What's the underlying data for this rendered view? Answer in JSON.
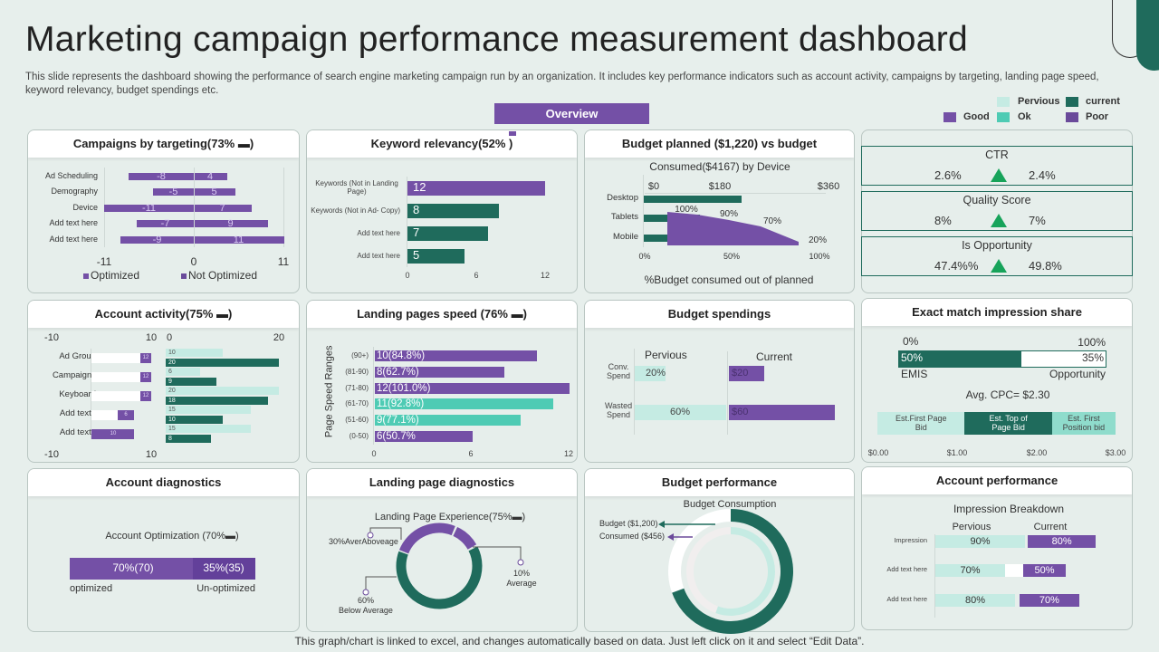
{
  "header": {
    "title": "Marketing campaign performance measurement dashboard",
    "description": "This slide represents the dashboard showing the performance of search engine marketing campaign run by an organization. It includes key performance indicators such as account activity,  campaigns by targeting, landing page speed, keyword relevancy,  budget spendings etc.",
    "overview_label": "Overview"
  },
  "legend": {
    "previous": "Pervious",
    "current": "current",
    "good": "Good",
    "ok": "Ok",
    "poor": "Poor"
  },
  "panels": {
    "campaigns": "Campaigns by targeting(73% ▬)",
    "keyword": "Keyword relevancy(52%   )",
    "budget_planned": "Budget planned ($1,220)  vs budget",
    "account_activity": "Account activity(75% ▬)",
    "landing_speed": "Landing pages speed (76% ▬)",
    "budget_spendings": "Budget spendings",
    "exact_match": "Exact match  impression share",
    "account_diagnostics": "Account diagnostics",
    "landing_diagnostics": "Landing page diagnostics",
    "budget_performance": "Budget performance",
    "account_performance": "Account performance"
  },
  "kpis": [
    {
      "label": "CTR",
      "previous": "2.6%",
      "current": "2.4%",
      "trend": "up"
    },
    {
      "label": "Quality Score",
      "previous": "8%",
      "current": "7%",
      "trend": "up"
    },
    {
      "label": "Is Opportunity",
      "previous": "47.4%%",
      "current": "49.8%",
      "trend": "up"
    }
  ],
  "footer": "This graph/chart is linked to excel,  and changes automatically based on data. Just left click on it and select “Edit Data”.",
  "colors": {
    "purple": "#7450a6",
    "dark_green": "#1f6b5c",
    "light_mint": "#c5ebe3",
    "teal": "#4ecbb4",
    "up_arrow": "#17a35a",
    "background": "#e7efec"
  },
  "chart_data": [
    {
      "type": "bar",
      "id": "campaigns",
      "categories": [
        "Ad Scheduling",
        "Demography",
        "Device",
        "Add text here",
        "Add text here"
      ],
      "series": [
        {
          "name": "Optimized",
          "values": [
            -8,
            -5,
            -11,
            -7,
            -9
          ]
        },
        {
          "name": "Not Optimized",
          "values": [
            4,
            5,
            7,
            9,
            11
          ]
        }
      ],
      "xlim": [
        -11,
        11
      ],
      "ticks": [
        "-11",
        "0",
        "11"
      ],
      "legend": "bottom"
    },
    {
      "type": "bar",
      "id": "keyword",
      "categories": [
        "Keywords (Not in Landing Page)",
        "Keywords (Not in Ad- Copy)",
        "Add text here",
        "Add text here"
      ],
      "values": [
        12,
        8,
        7,
        5
      ],
      "xlim": [
        0,
        12
      ],
      "ticks": [
        "0",
        "6",
        "12"
      ]
    },
    {
      "type": "area",
      "id": "budget_planned",
      "subtitle": "Consumed($4167) by Device",
      "categories": [
        "Desktop",
        "Tablets",
        "Mobile"
      ],
      "device_spend": [
        190,
        110,
        45
      ],
      "top_ticks": [
        "$0",
        "$180",
        "$360"
      ],
      "consumed_pct": [
        100,
        90,
        70,
        20
      ],
      "consumed_labels": [
        "100%",
        "90%",
        "70%",
        "20%"
      ],
      "bottom_ticks": [
        "0%",
        "50%",
        "100%"
      ],
      "xlabel": "%Budget consumed out of planned"
    },
    {
      "type": "bar",
      "id": "account_activity",
      "categories": [
        "Ad Group",
        "Campaigns",
        "Keyboard",
        "Add text..",
        "Add text.."
      ],
      "left_values": [
        12,
        12,
        12,
        6,
        10
      ],
      "left_ticks": [
        "-10",
        "10"
      ],
      "series": [
        {
          "values": [
            10,
            6,
            20,
            15,
            15
          ]
        },
        {
          "values": [
            20,
            9,
            18,
            10,
            8
          ]
        }
      ],
      "right_ticks": [
        "0",
        "20"
      ]
    },
    {
      "type": "bar",
      "id": "landing_speed",
      "ylabel": "Page Speed Ranges",
      "categories": [
        "(90+)",
        "(81-90)",
        "(71-80)",
        "(61-70)",
        "(51-60)",
        "(0-50)"
      ],
      "values": [
        10,
        8,
        12,
        11,
        9,
        6
      ],
      "labels": [
        "10(84.8%)",
        "8(62.7%)",
        "12(101.0%)",
        "11(92.8%)",
        "9(77.1%)",
        "6(50.7%"
      ],
      "ratings": [
        "purple",
        "purple",
        "purple",
        "teal",
        "teal",
        "purple"
      ],
      "xlim": [
        0,
        12
      ],
      "ticks": [
        "0",
        "6",
        "12"
      ]
    },
    {
      "type": "bar",
      "id": "budget_spendings",
      "categories": [
        "Conv. Spend",
        "Wasted Spend"
      ],
      "previous_label": "Pervious",
      "current_label": "Current",
      "previous": [
        20,
        60
      ],
      "previous_text": [
        "20%",
        "60%"
      ],
      "current": [
        20,
        60
      ],
      "current_text": [
        "$20",
        "$60"
      ]
    },
    {
      "type": "bar",
      "id": "exact_match",
      "min_label": "0%",
      "max_label": "100%",
      "emis": 50,
      "emis_label": "50%",
      "opportunity_label": "35%",
      "left_caption": "EMIS",
      "right_caption": "Opportunity",
      "avg_cpc": "Avg.  CPC= $2.30",
      "bids": [
        {
          "label": "Est.First Page Bid",
          "from": 0,
          "to": 1.1
        },
        {
          "label": "Est. Top of Page Bid",
          "from": 1.1,
          "to": 2.2
        },
        {
          "label": "Est. First Position bid",
          "from": 2.2,
          "to": 3.0
        }
      ],
      "ticks": [
        "$0.00",
        "$1.00",
        "$2.00",
        "$3.00"
      ]
    },
    {
      "type": "bar",
      "id": "account_diagnostics",
      "title": "Account Optimization (70%▬)",
      "optimized": 70,
      "optimized_label": "70%(70)",
      "unoptimized": 35,
      "unoptimized_label": "35%(35)",
      "left_caption": "optimized",
      "right_caption": "Un-optimized"
    },
    {
      "type": "pie",
      "id": "landing_diagnostics",
      "title": "Landing Page Experience(75%▬)",
      "slices": [
        {
          "label": "30%AverAboveage",
          "value": 30
        },
        {
          "label": "10%",
          "sublabel": "Average",
          "value": 10
        },
        {
          "label": "60%",
          "sublabel": "Below Average",
          "value": 60
        }
      ]
    },
    {
      "type": "pie",
      "id": "budget_performance",
      "title": "Budget Consumption",
      "budget_label": "Budget ($1,200)",
      "consumed_label": "Consumed ($456)",
      "budget": 1200,
      "consumed": 456
    },
    {
      "type": "bar",
      "id": "account_performance",
      "title": "Impression Breakdown",
      "previous_label": "Pervious",
      "current_label": "Current",
      "categories": [
        "Impression",
        "Add text here",
        "Add text here"
      ],
      "previous": [
        90,
        70,
        80
      ],
      "current": [
        80,
        50,
        70
      ]
    }
  ]
}
